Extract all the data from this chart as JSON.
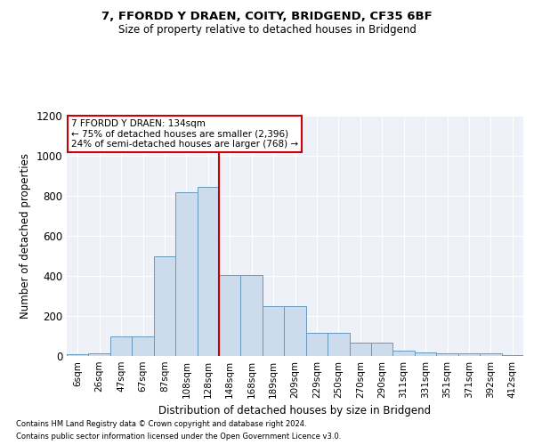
{
  "title_line1": "7, FFORDD Y DRAEN, COITY, BRIDGEND, CF35 6BF",
  "title_line2": "Size of property relative to detached houses in Bridgend",
  "xlabel": "Distribution of detached houses by size in Bridgend",
  "ylabel": "Number of detached properties",
  "bin_labels": [
    "6sqm",
    "26sqm",
    "47sqm",
    "67sqm",
    "87sqm",
    "108sqm",
    "128sqm",
    "148sqm",
    "168sqm",
    "189sqm",
    "209sqm",
    "229sqm",
    "250sqm",
    "270sqm",
    "290sqm",
    "311sqm",
    "331sqm",
    "351sqm",
    "371sqm",
    "392sqm",
    "412sqm"
  ],
  "bar_heights": [
    10,
    12,
    100,
    100,
    500,
    820,
    845,
    405,
    405,
    250,
    250,
    115,
    115,
    65,
    65,
    28,
    20,
    14,
    14,
    14,
    5
  ],
  "bar_color": "#ccdcec",
  "bar_edge_color": "#6699bb",
  "vline_bar_index": 6,
  "annotation_line1": "7 FFORDD Y DRAEN: 134sqm",
  "annotation_line2": "← 75% of detached houses are smaller (2,396)",
  "annotation_line3": "24% of semi-detached houses are larger (768) →",
  "vline_color": "#cc0000",
  "annotation_box_edge": "#cc0000",
  "footnote1": "Contains HM Land Registry data © Crown copyright and database right 2024.",
  "footnote2": "Contains public sector information licensed under the Open Government Licence v3.0.",
  "ylim": [
    0,
    1200
  ],
  "yticks": [
    0,
    200,
    400,
    600,
    800,
    1000,
    1200
  ],
  "background_color": "#eef2f8",
  "grid_color": "#ffffff",
  "fig_width": 6.0,
  "fig_height": 5.0,
  "dpi": 100
}
